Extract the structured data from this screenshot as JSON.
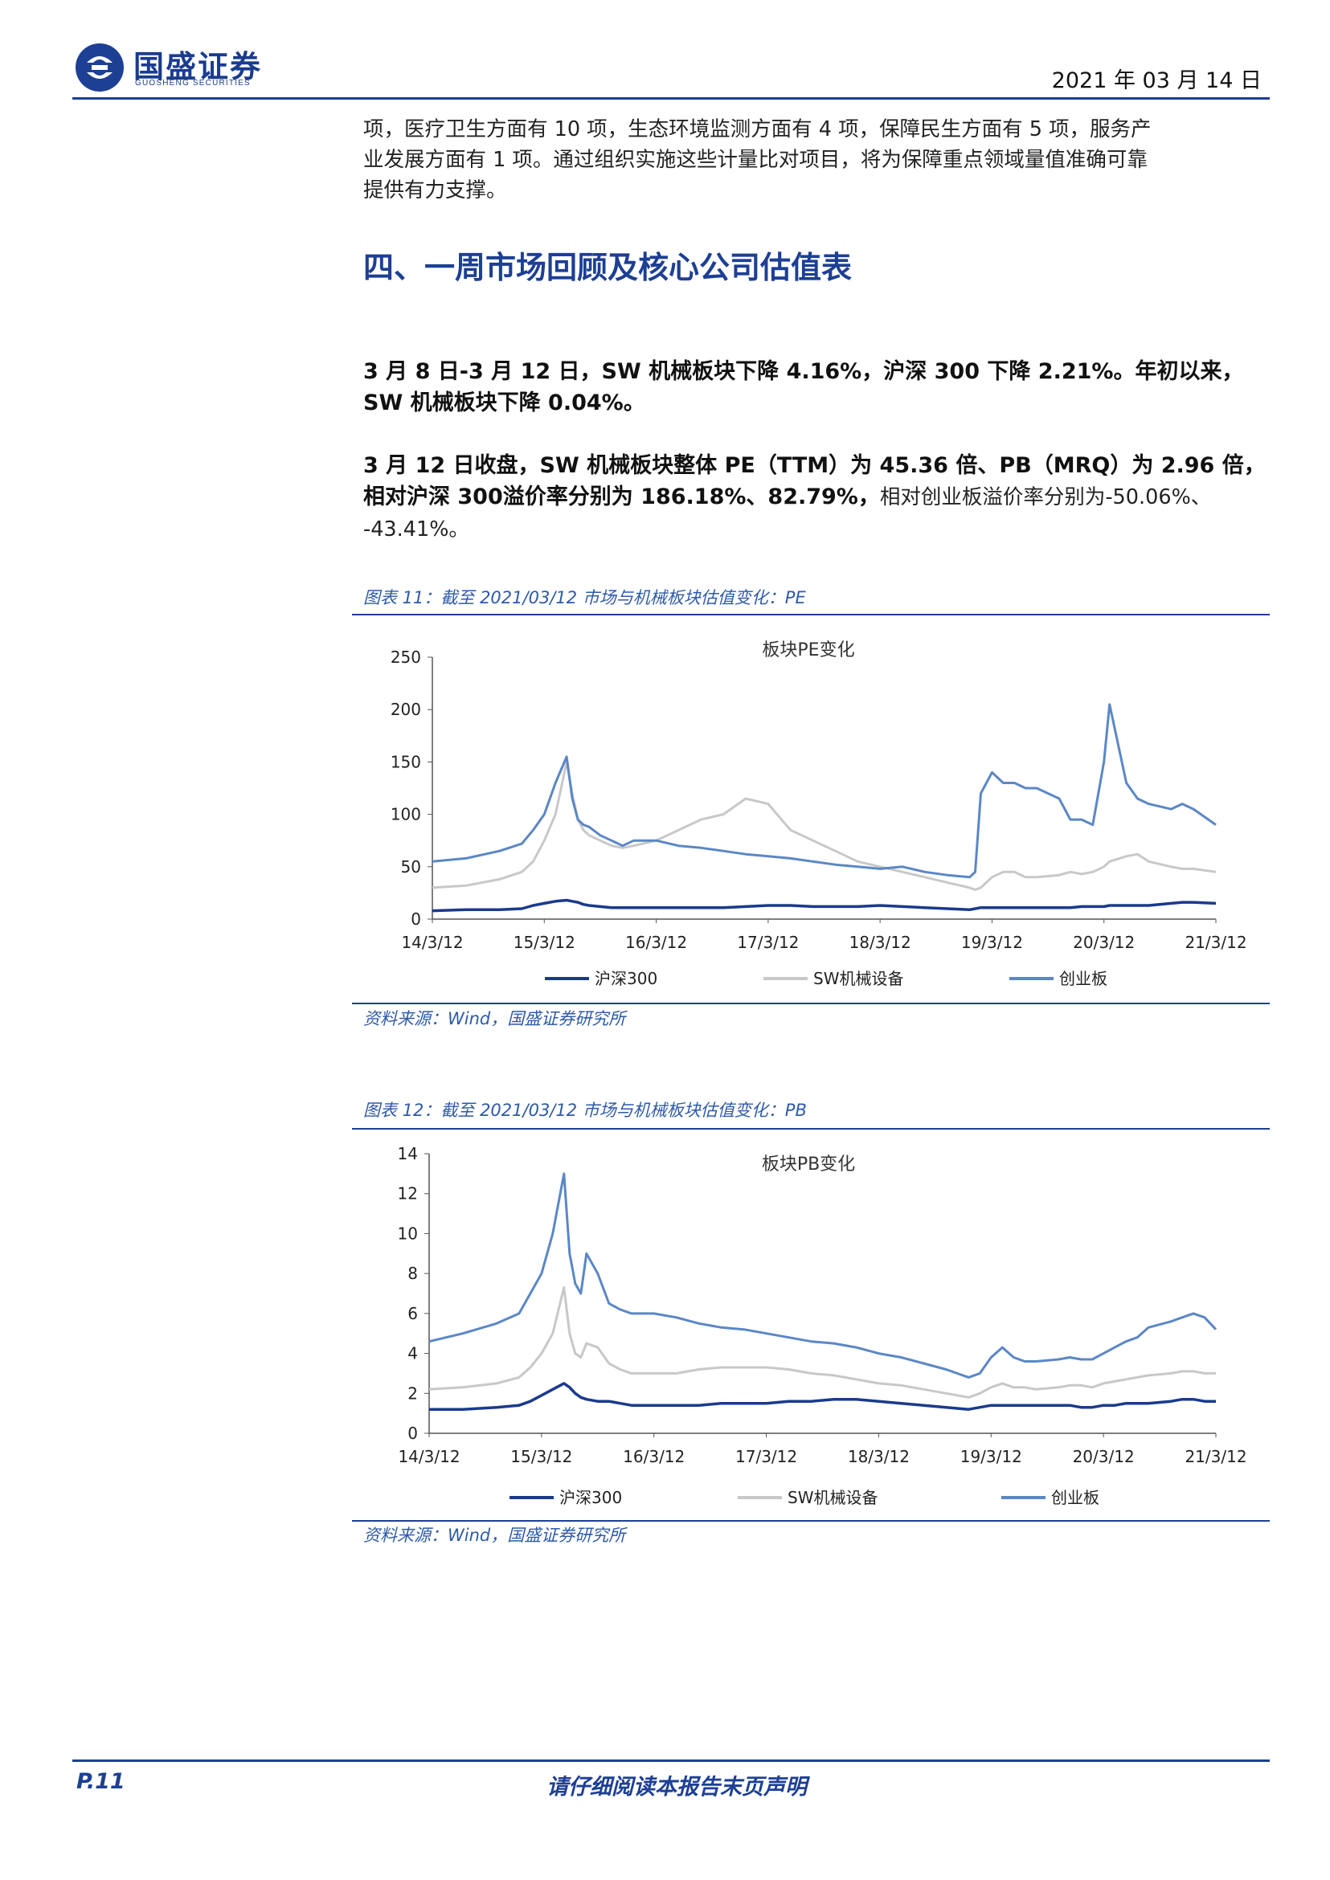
{
  "header": {
    "logo_text": "国盛证券",
    "logo_subtext": "GUOSHENG SECURITIES",
    "date": "2021 年 03 月 14 日"
  },
  "body": {
    "para_continued_1": "项，医疗卫生方面有 10 项，生态环境监测方面有 4 项，保障民生方面有 5 项，服务产",
    "para_continued_2": "业发展方面有 1 项。通过组织实施这些计量比对项目，将为保障重点领域量值准确可靠",
    "para_continued_3": "提供有力支撑。",
    "section_title": "四、一周市场回顾及核心公司估值表",
    "summary_1_line1": "3 月 8 日-3 月 12 日，SW 机械板块下降 4.16%，沪深 300 下降 2.21%。年初以来，",
    "summary_1_line2": "SW 机械板块下降 0.04%。",
    "summary_2_line1": "3 月 12 日收盘，SW 机械板块整体 PE（TTM）为 45.36 倍、PB（MRQ）为 2.96 倍，",
    "summary_2_line2_bold": "相对沪深 300溢价率分别为 186.18%、82.79%，",
    "summary_2_line2_normal": "相对创业板溢价率分别为-50.06%、",
    "summary_2_line3": "-43.41%。"
  },
  "figures": [
    {
      "caption": "图表 11：截至 2021/03/12 市场与机械板块估值变化：PE",
      "source": "资料来源：Wind，国盛证券研究所"
    },
    {
      "caption": "图表 12：截至 2021/03/12 市场与机械板块估值变化：PB",
      "source": "资料来源：Wind，国盛证券研究所"
    }
  ],
  "chart_data": [
    {
      "type": "line",
      "title": "板块PE变化",
      "x_tick_labels": [
        "14/3/12",
        "15/3/12",
        "16/3/12",
        "17/3/12",
        "18/3/12",
        "19/3/12",
        "20/3/12",
        "21/3/12"
      ],
      "ylim": [
        0,
        250
      ],
      "y_ticks": [
        0,
        50,
        100,
        150,
        200,
        250
      ],
      "grid": false,
      "legend_position": "bottom",
      "colors": {
        "沪深300": "#1a3a8c",
        "SW机械设备": "#c8c8c8",
        "创业板": "#5b87c6"
      },
      "x": [
        2014.2,
        2014.5,
        2014.8,
        2015.0,
        2015.1,
        2015.2,
        2015.3,
        2015.4,
        2015.45,
        2015.5,
        2015.55,
        2015.6,
        2015.7,
        2015.8,
        2015.9,
        2016.0,
        2016.2,
        2016.4,
        2016.6,
        2016.8,
        2017.0,
        2017.2,
        2017.4,
        2017.6,
        2017.8,
        2018.0,
        2018.2,
        2018.4,
        2018.6,
        2018.8,
        2019.0,
        2019.05,
        2019.1,
        2019.2,
        2019.3,
        2019.4,
        2019.5,
        2019.6,
        2019.8,
        2019.9,
        2020.0,
        2020.1,
        2020.2,
        2020.25,
        2020.4,
        2020.5,
        2020.6,
        2020.8,
        2020.9,
        2021.0,
        2021.2
      ],
      "series": [
        {
          "name": "沪深300",
          "values": [
            8,
            9,
            9,
            10,
            13,
            15,
            17,
            18,
            17,
            16,
            14,
            13,
            12,
            11,
            11,
            11,
            11,
            11,
            11,
            11,
            12,
            13,
            13,
            12,
            12,
            12,
            13,
            12,
            11,
            10,
            9,
            10,
            11,
            11,
            11,
            11,
            11,
            11,
            11,
            11,
            12,
            12,
            12,
            13,
            13,
            13,
            13,
            15,
            16,
            16,
            15
          ]
        },
        {
          "name": "SW机械设备",
          "values": [
            30,
            32,
            38,
            45,
            55,
            75,
            100,
            150,
            120,
            95,
            85,
            80,
            75,
            70,
            68,
            70,
            75,
            85,
            95,
            100,
            115,
            110,
            85,
            75,
            65,
            55,
            50,
            45,
            40,
            35,
            30,
            28,
            30,
            40,
            45,
            45,
            40,
            40,
            42,
            45,
            43,
            45,
            50,
            55,
            60,
            62,
            55,
            50,
            48,
            48,
            45
          ]
        },
        {
          "name": "创业板",
          "values": [
            55,
            58,
            65,
            72,
            85,
            100,
            130,
            155,
            115,
            95,
            90,
            88,
            80,
            75,
            70,
            75,
            75,
            70,
            68,
            65,
            62,
            60,
            58,
            55,
            52,
            50,
            48,
            50,
            45,
            42,
            40,
            45,
            120,
            140,
            130,
            130,
            125,
            125,
            115,
            95,
            95,
            90,
            150,
            205,
            130,
            115,
            110,
            105,
            110,
            105,
            90
          ]
        }
      ]
    },
    {
      "type": "line",
      "title": "板块PB变化",
      "x_tick_labels": [
        "14/3/12",
        "15/3/12",
        "16/3/12",
        "17/3/12",
        "18/3/12",
        "19/3/12",
        "20/3/12",
        "21/3/12"
      ],
      "ylim": [
        0,
        14
      ],
      "y_ticks": [
        0,
        2,
        4,
        6,
        8,
        10,
        12,
        14
      ],
      "grid": false,
      "legend_position": "bottom",
      "colors": {
        "沪深300": "#1a3a8c",
        "SW机械设备": "#c8c8c8",
        "创业板": "#5b87c6"
      },
      "x": [
        2014.2,
        2014.5,
        2014.8,
        2015.0,
        2015.1,
        2015.2,
        2015.3,
        2015.4,
        2015.45,
        2015.5,
        2015.55,
        2015.6,
        2015.7,
        2015.8,
        2015.9,
        2016.0,
        2016.2,
        2016.4,
        2016.6,
        2016.8,
        2017.0,
        2017.2,
        2017.4,
        2017.6,
        2017.8,
        2018.0,
        2018.2,
        2018.4,
        2018.6,
        2018.8,
        2019.0,
        2019.1,
        2019.2,
        2019.3,
        2019.4,
        2019.5,
        2019.6,
        2019.8,
        2019.9,
        2020.0,
        2020.1,
        2020.2,
        2020.3,
        2020.4,
        2020.5,
        2020.6,
        2020.8,
        2020.9,
        2021.0,
        2021.1,
        2021.2
      ],
      "series": [
        {
          "name": "沪深300",
          "values": [
            1.2,
            1.2,
            1.3,
            1.4,
            1.6,
            1.9,
            2.2,
            2.5,
            2.3,
            2.0,
            1.8,
            1.7,
            1.6,
            1.6,
            1.5,
            1.4,
            1.4,
            1.4,
            1.4,
            1.5,
            1.5,
            1.5,
            1.6,
            1.6,
            1.7,
            1.7,
            1.6,
            1.5,
            1.4,
            1.3,
            1.2,
            1.3,
            1.4,
            1.4,
            1.4,
            1.4,
            1.4,
            1.4,
            1.4,
            1.3,
            1.3,
            1.4,
            1.4,
            1.5,
            1.5,
            1.5,
            1.6,
            1.7,
            1.7,
            1.6,
            1.6
          ]
        },
        {
          "name": "SW机械设备",
          "values": [
            2.2,
            2.3,
            2.5,
            2.8,
            3.3,
            4.0,
            5.0,
            7.3,
            5.0,
            4.0,
            3.8,
            4.5,
            4.3,
            3.5,
            3.2,
            3.0,
            3.0,
            3.0,
            3.2,
            3.3,
            3.3,
            3.3,
            3.2,
            3.0,
            2.9,
            2.7,
            2.5,
            2.4,
            2.2,
            2.0,
            1.8,
            2.0,
            2.3,
            2.5,
            2.3,
            2.3,
            2.2,
            2.3,
            2.4,
            2.4,
            2.3,
            2.5,
            2.6,
            2.7,
            2.8,
            2.9,
            3.0,
            3.1,
            3.1,
            3.0,
            3.0
          ]
        },
        {
          "name": "创业板",
          "values": [
            4.6,
            5.0,
            5.5,
            6.0,
            7.0,
            8.0,
            10.0,
            13.0,
            9.0,
            7.5,
            7.0,
            9.0,
            8.0,
            6.5,
            6.2,
            6.0,
            6.0,
            5.8,
            5.5,
            5.3,
            5.2,
            5.0,
            4.8,
            4.6,
            4.5,
            4.3,
            4.0,
            3.8,
            3.5,
            3.2,
            2.8,
            3.0,
            3.8,
            4.3,
            3.8,
            3.6,
            3.6,
            3.7,
            3.8,
            3.7,
            3.7,
            4.0,
            4.3,
            4.6,
            4.8,
            5.3,
            5.6,
            5.8,
            6.0,
            5.8,
            5.2
          ]
        }
      ]
    }
  ]
}
